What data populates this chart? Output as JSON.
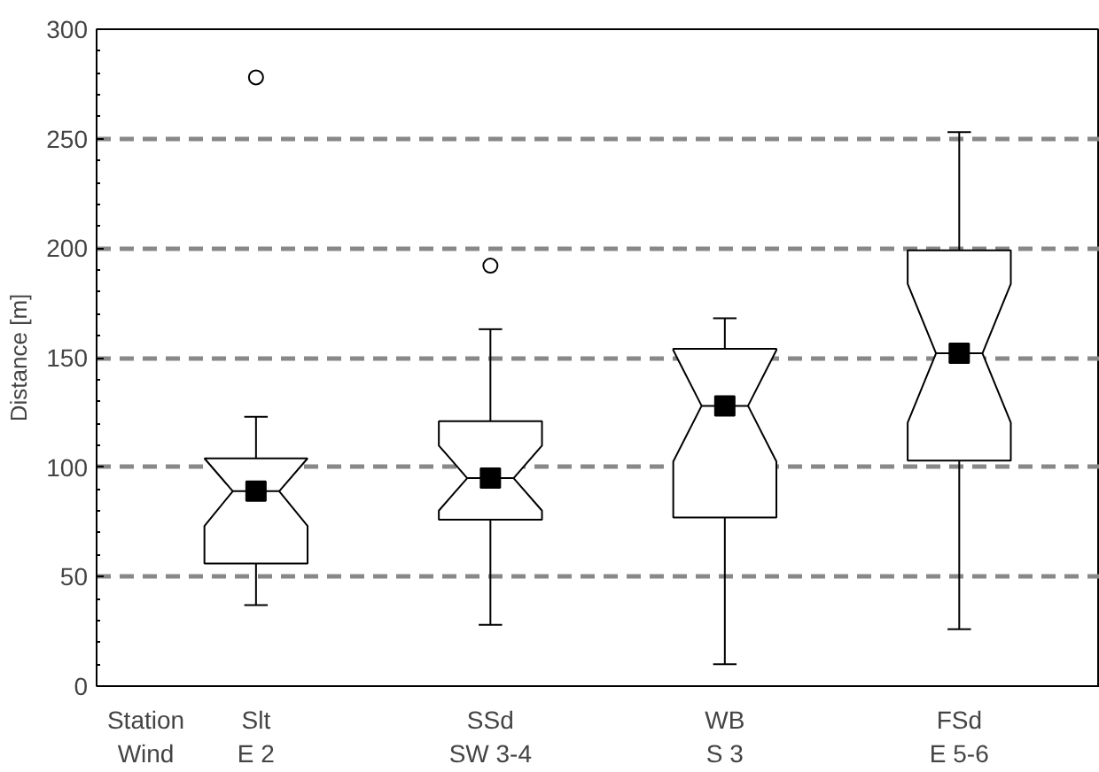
{
  "chart_data": {
    "type": "box",
    "ylabel": "Distance [m]",
    "categories": [
      "Slt\nE 2",
      "SSd\nSW 3-4",
      "WB\nS 3",
      "FSd\nE 5-6"
    ],
    "annotations": [
      "Station",
      "Wind"
    ],
    "boxes": [
      {
        "low": 37,
        "q1": 56,
        "median": 89,
        "q3": 104,
        "high": 123,
        "outliers": [
          278
        ]
      },
      {
        "low": 28,
        "q1": 76,
        "median": 95,
        "q3": 121,
        "high": 163,
        "outliers": [
          192
        ]
      },
      {
        "low": 10,
        "q1": 77,
        "median": 128,
        "q3": 154,
        "high": 168
      },
      {
        "low": 26,
        "q1": 103,
        "median": 152,
        "q3": 199,
        "high": 253
      }
    ],
    "series": [
      {
        "type": "scatter",
        "color": "#000000",
        "x": [
          "Slt\nE 2",
          "SSd\nSW 3-4",
          "WB\nS 3",
          "FSd\nE 5-6"
        ],
        "values": [
          89,
          95,
          128,
          152
        ]
      }
    ],
    "ylim": [
      0,
      300
    ],
    "yticks": [
      0,
      50,
      100,
      150,
      200,
      250,
      300
    ],
    "grid": "y",
    "marker": "square"
  }
}
